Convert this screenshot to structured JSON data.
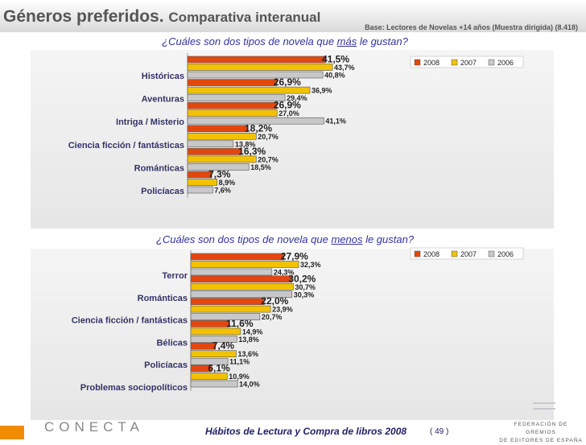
{
  "header": {
    "title": "Géneros preferidos.",
    "subtitle": "Comparativa interanual",
    "base_note": "Base: Lectores de Novelas +14 años (Muestra dirigida) (8.418)"
  },
  "footer": {
    "logo_text": "CONECTA",
    "report_title": "Hábitos de Lectura y Compra de libros 2008",
    "page": "( 49 )",
    "federation_line1": "FEDERACIÓN DE GREMIOS",
    "federation_line2": "DE EDITORES DE ESPAÑA"
  },
  "colors": {
    "y2008": "#e3470f",
    "y2007": "#f2c200",
    "y2006": "#c8c8c8"
  },
  "chart_data": [
    {
      "type": "bar",
      "orientation": "horizontal",
      "title_prefix": "¿Cuáles son dos tipos de novela que ",
      "title_emph": "más",
      "title_suffix": " le gustan?",
      "legend_position": "top-right",
      "xlim": [
        0,
        50
      ],
      "categories": [
        "Históricas",
        "Aventuras",
        "Intriga / Misterio",
        "Ciencia ficción / fantásticas",
        "Románticas",
        "Policíacas"
      ],
      "series": [
        {
          "name": "2008",
          "values": [
            41.5,
            26.9,
            26.9,
            18.2,
            16.3,
            7.3
          ],
          "labels": [
            "41,5%",
            "26,9%",
            "26,9%",
            "18,2%",
            "16,3%",
            "7,3%"
          ]
        },
        {
          "name": "2007",
          "values": [
            43.7,
            36.9,
            27.0,
            20.7,
            20.7,
            8.9
          ],
          "labels": [
            "43,7%",
            "36,9%",
            "27,0%",
            "20,7%",
            "20,7%",
            "8,9%"
          ]
        },
        {
          "name": "2006",
          "values": [
            40.8,
            29.4,
            41.1,
            13.8,
            18.5,
            7.6
          ],
          "labels": [
            "40,8%",
            "29,4%",
            "41,1%",
            "13,8%",
            "18,5%",
            "7,6%"
          ]
        }
      ]
    },
    {
      "type": "bar",
      "orientation": "horizontal",
      "title_prefix": "¿Cuáles son dos tipos de novela que ",
      "title_emph": "menos",
      "title_suffix": " le gustan?",
      "legend_position": "top-right",
      "xlim": [
        0,
        50
      ],
      "categories": [
        "Terror",
        "Románticas",
        "Ciencia ficción / fantásticas",
        "Bélicas",
        "Policíacas",
        "Problemas sociopolíticos"
      ],
      "series": [
        {
          "name": "2008",
          "values": [
            27.9,
            30.2,
            22.0,
            11.6,
            7.4,
            6.1
          ],
          "labels": [
            "27,9%",
            "30,2%",
            "22,0%",
            "11,6%",
            "7,4%",
            "6,1%"
          ]
        },
        {
          "name": "2007",
          "values": [
            32.3,
            30.7,
            23.9,
            14.9,
            13.6,
            10.9
          ],
          "labels": [
            "32,3%",
            "30,7%",
            "23,9%",
            "14,9%",
            "13,6%",
            "10,9%"
          ]
        },
        {
          "name": "2006",
          "values": [
            24.3,
            30.3,
            20.7,
            13.8,
            11.1,
            14.0
          ],
          "labels": [
            "24,3%",
            "30,3%",
            "20,7%",
            "13,8%",
            "11,1%",
            "14,0%"
          ]
        }
      ]
    }
  ]
}
